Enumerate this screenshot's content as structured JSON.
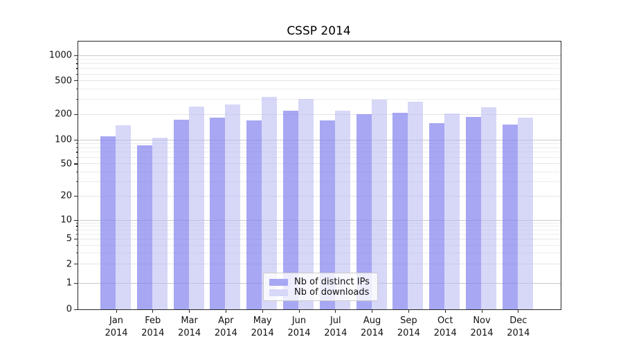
{
  "title": "CSSP 2014",
  "chart_data": {
    "type": "bar",
    "title": "CSSP 2014",
    "categories": [
      "Jan",
      "Feb",
      "Mar",
      "Apr",
      "May",
      "Jun",
      "Jul",
      "Aug",
      "Sep",
      "Oct",
      "Nov",
      "Dec"
    ],
    "category_year": "2014",
    "series": [
      {
        "name": "Nb of distinct IPs",
        "fill": "rgba(130,130,238,0.70)",
        "legend_color": "#a7a7f3",
        "values": [
          110,
          86,
          173,
          182,
          170,
          222,
          170,
          200,
          210,
          158,
          186,
          152
        ]
      },
      {
        "name": "Nb of downloads",
        "fill": "rgba(183,183,243,0.55)",
        "legend_color": "#d7d7f8",
        "values": [
          150,
          105,
          248,
          260,
          325,
          305,
          222,
          300,
          285,
          205,
          245,
          182
        ]
      }
    ],
    "yscale": "symlog",
    "yticks": [
      0,
      1,
      2,
      5,
      10,
      20,
      50,
      100,
      200,
      500,
      1000
    ],
    "ylim": [
      0,
      1500
    ],
    "grid": true,
    "legend_position": "lower center",
    "grid_major_color": "#c9c9c9",
    "grid_minor_color": "#ececec"
  }
}
